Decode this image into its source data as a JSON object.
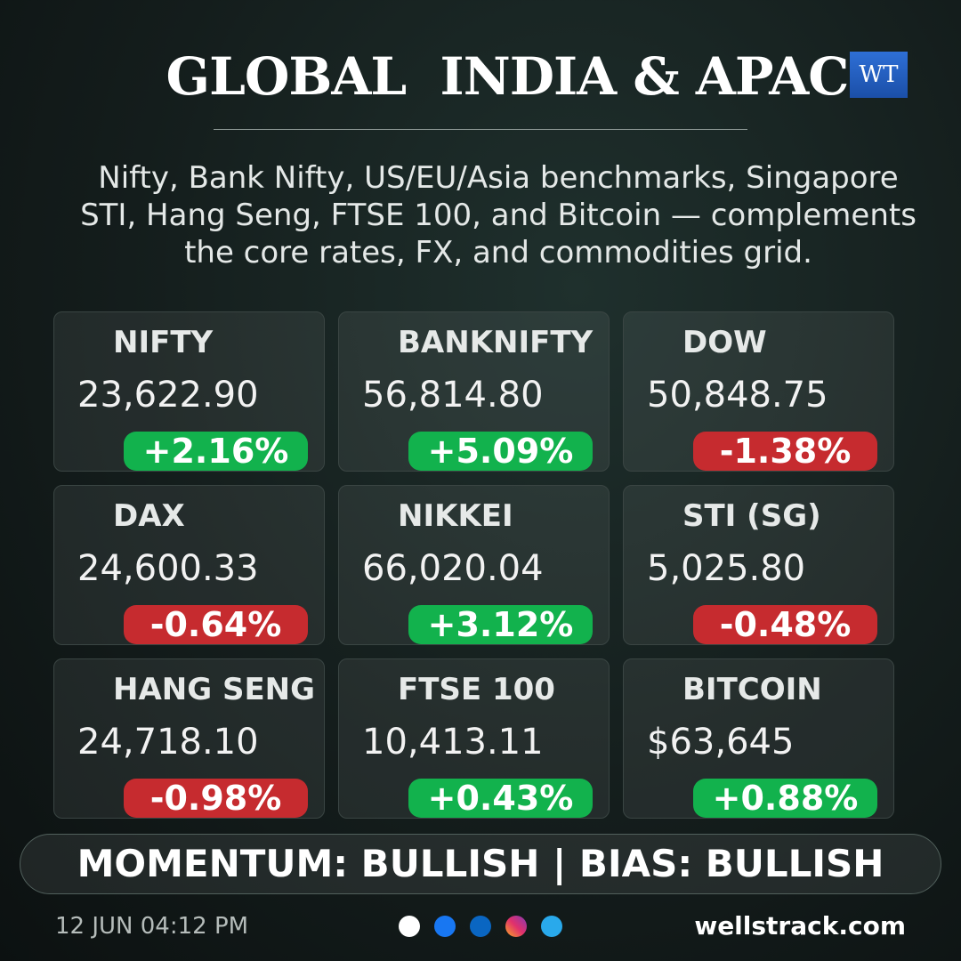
{
  "header": {
    "title": "GLOBAL  INDIA & APAC",
    "logo": "WT",
    "subtitle": [
      "Nifty, Bank Nifty, US/EU/Asia benchmarks, Singapore",
      "STI, Hang Seng, FTSE 100, and Bitcoin — complements",
      "the core rates, FX, and commodities grid."
    ]
  },
  "cards": [
    {
      "name": "NIFTY",
      "value": "23,622.90",
      "change": "+2.16%",
      "color": "#12b24d"
    },
    {
      "name": "BANKNIFTY",
      "value": "56,814.80",
      "change": "+5.09%",
      "color": "#12b24d"
    },
    {
      "name": "DOW",
      "value": "50,848.75",
      "change": "-1.38%",
      "color": "#c62b2f"
    },
    {
      "name": "DAX",
      "value": "24,600.33",
      "change": "-0.64%",
      "color": "#c62b2f"
    },
    {
      "name": "NIKKEI",
      "value": "66,020.04",
      "change": "+3.12%",
      "color": "#12b24d"
    },
    {
      "name": "STI (SG)",
      "value": "5,025.80",
      "change": "-0.48%",
      "color": "#c62b2f"
    },
    {
      "name": "HANG SENG",
      "value": "24,718.10",
      "change": "-0.98%",
      "color": "#c62b2f"
    },
    {
      "name": "FTSE 100",
      "value": "10,413.11",
      "change": "+0.43%",
      "color": "#12b24d"
    },
    {
      "name": "BITCOIN",
      "value": "$63,645",
      "change": "+0.88%",
      "color": "#12b24d"
    }
  ],
  "footer": {
    "banner": "MOMENTUM: BULLISH | BIAS: BULLISH",
    "timestamp": "12 JUN 04:12 PM",
    "website": "wellstrack.com"
  }
}
